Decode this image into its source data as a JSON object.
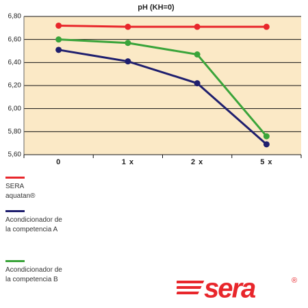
{
  "chart_data": {
    "type": "line",
    "title": "pH (KH=0)",
    "categories": [
      "0",
      "1 x",
      "2 x",
      "5 x"
    ],
    "series": [
      {
        "name": "SERA aquatan®",
        "color": "#e8262b",
        "values": [
          6.72,
          6.71,
          6.71,
          6.71
        ]
      },
      {
        "name": "Acondicionador de la competencia A",
        "color": "#1f1f6e",
        "values": [
          6.51,
          6.41,
          6.22,
          5.69
        ]
      },
      {
        "name": "Acondicionador de la competencia B",
        "color": "#3aa43a",
        "values": [
          6.6,
          6.57,
          6.47,
          5.76
        ]
      }
    ],
    "ylim": [
      5.6,
      6.8
    ],
    "yticks": [
      {
        "value": 5.6,
        "label": "5,60"
      },
      {
        "value": 5.8,
        "label": "5,80"
      },
      {
        "value": 6.0,
        "label": "6,00"
      },
      {
        "value": 6.2,
        "label": "6,20"
      },
      {
        "value": 6.4,
        "label": "6,40"
      },
      {
        "value": 6.6,
        "label": "6,60"
      },
      {
        "value": 6.8,
        "label": "6,80"
      }
    ],
    "grid": true,
    "background": "#fbe9c6",
    "logo": "sera",
    "logo_mark": "®"
  }
}
